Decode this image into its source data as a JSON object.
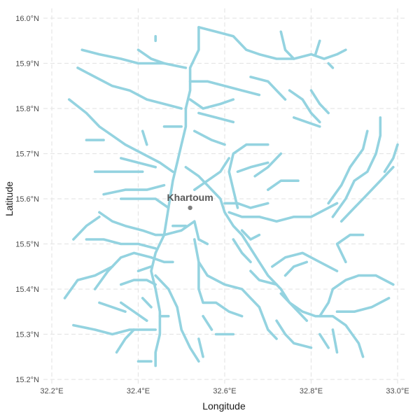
{
  "map": {
    "xlabel": "Longitude",
    "ylabel": "Latitude",
    "xlim": [
      32.2,
      33.0
    ],
    "ylim": [
      15.2,
      16.0
    ],
    "x_ticks": [
      {
        "value": 32.2,
        "label": "32.2°E"
      },
      {
        "value": 32.4,
        "label": "32.4°E"
      },
      {
        "value": 32.6,
        "label": "32.6°E"
      },
      {
        "value": 32.8,
        "label": "32.8°E"
      },
      {
        "value": 33.0,
        "label": "33.0°E"
      }
    ],
    "y_ticks": [
      {
        "value": 15.2,
        "label": "15.2°N"
      },
      {
        "value": 15.3,
        "label": "15.3°N"
      },
      {
        "value": 15.4,
        "label": "15.4°N"
      },
      {
        "value": 15.5,
        "label": "15.5°N"
      },
      {
        "value": 15.6,
        "label": "15.6°N"
      },
      {
        "value": 15.7,
        "label": "15.7°N"
      },
      {
        "value": 15.8,
        "label": "15.8°N"
      },
      {
        "value": 15.9,
        "label": "15.9°N"
      },
      {
        "value": 16.0,
        "label": "16.0°N"
      }
    ],
    "grid": true,
    "river_color": "#94d3e0",
    "point_color": "#7f7f7f",
    "city": {
      "name": "Khartoum",
      "lon": 32.52,
      "lat": 15.58
    },
    "rivers": [
      [
        [
          32.54,
          15.98
        ],
        [
          32.54,
          15.93
        ],
        [
          32.52,
          15.89
        ],
        [
          32.52,
          15.84
        ],
        [
          32.51,
          15.8
        ],
        [
          32.51,
          15.76
        ],
        [
          32.5,
          15.72
        ],
        [
          32.49,
          15.68
        ],
        [
          32.48,
          15.64
        ],
        [
          32.47,
          15.58
        ],
        [
          32.46,
          15.52
        ],
        [
          32.44,
          15.48
        ],
        [
          32.43,
          15.44
        ],
        [
          32.44,
          15.4
        ],
        [
          32.45,
          15.35
        ],
        [
          32.45,
          15.3
        ],
        [
          32.44,
          15.26
        ],
        [
          32.44,
          15.23
        ]
      ],
      [
        [
          32.54,
          15.98
        ],
        [
          32.58,
          15.97
        ],
        [
          32.62,
          15.96
        ],
        [
          32.65,
          15.93
        ],
        [
          32.68,
          15.92
        ],
        [
          32.72,
          15.91
        ],
        [
          32.76,
          15.91
        ],
        [
          32.8,
          15.92
        ],
        [
          32.83,
          15.91
        ],
        [
          32.86,
          15.92
        ],
        [
          32.88,
          15.93
        ]
      ],
      [
        [
          32.73,
          15.97
        ],
        [
          32.74,
          15.93
        ],
        [
          32.76,
          15.91
        ]
      ],
      [
        [
          32.82,
          15.95
        ],
        [
          32.81,
          15.92
        ]
      ],
      [
        [
          32.84,
          15.9
        ],
        [
          32.85,
          15.89
        ]
      ],
      [
        [
          32.51,
          15.89
        ],
        [
          32.46,
          15.9
        ],
        [
          32.4,
          15.9
        ],
        [
          32.36,
          15.91
        ],
        [
          32.31,
          15.92
        ],
        [
          32.27,
          15.93
        ]
      ],
      [
        [
          32.46,
          15.9
        ],
        [
          32.43,
          15.91
        ],
        [
          32.4,
          15.93
        ]
      ],
      [
        [
          32.26,
          15.89
        ],
        [
          32.3,
          15.87
        ],
        [
          32.34,
          15.85
        ],
        [
          32.38,
          15.84
        ],
        [
          32.42,
          15.82
        ],
        [
          32.46,
          15.81
        ],
        [
          32.5,
          15.8
        ]
      ],
      [
        [
          32.24,
          15.82
        ],
        [
          32.28,
          15.79
        ],
        [
          32.31,
          15.76
        ],
        [
          32.34,
          15.74
        ],
        [
          32.37,
          15.72
        ],
        [
          32.41,
          15.7
        ],
        [
          32.45,
          15.68
        ],
        [
          32.48,
          15.66
        ]
      ],
      [
        [
          32.28,
          15.73
        ],
        [
          32.32,
          15.73
        ]
      ],
      [
        [
          32.41,
          15.75
        ],
        [
          32.42,
          15.72
        ]
      ],
      [
        [
          32.36,
          15.69
        ],
        [
          32.4,
          15.68
        ],
        [
          32.44,
          15.67
        ]
      ],
      [
        [
          32.3,
          15.66
        ],
        [
          32.36,
          15.66
        ],
        [
          32.41,
          15.66
        ]
      ],
      [
        [
          32.32,
          15.61
        ],
        [
          32.37,
          15.62
        ],
        [
          32.42,
          15.62
        ],
        [
          32.46,
          15.63
        ]
      ],
      [
        [
          32.36,
          15.6
        ],
        [
          32.4,
          15.6
        ],
        [
          32.44,
          15.6
        ],
        [
          32.47,
          15.58
        ]
      ],
      [
        [
          32.31,
          15.57
        ],
        [
          32.34,
          15.55
        ],
        [
          32.37,
          15.54
        ],
        [
          32.41,
          15.53
        ],
        [
          32.44,
          15.52
        ],
        [
          32.46,
          15.52
        ]
      ],
      [
        [
          32.25,
          15.51
        ],
        [
          32.28,
          15.54
        ],
        [
          32.31,
          15.56
        ]
      ],
      [
        [
          32.28,
          15.51
        ],
        [
          32.32,
          15.51
        ],
        [
          32.36,
          15.5
        ],
        [
          32.4,
          15.5
        ],
        [
          32.44,
          15.49
        ]
      ],
      [
        [
          32.3,
          15.4
        ],
        [
          32.33,
          15.44
        ],
        [
          32.36,
          15.47
        ],
        [
          32.39,
          15.48
        ],
        [
          32.43,
          15.47
        ]
      ],
      [
        [
          32.23,
          15.38
        ],
        [
          32.26,
          15.42
        ],
        [
          32.3,
          15.43
        ],
        [
          32.34,
          15.45
        ]
      ],
      [
        [
          32.36,
          15.41
        ],
        [
          32.39,
          15.42
        ],
        [
          32.42,
          15.42
        ],
        [
          32.44,
          15.41
        ]
      ],
      [
        [
          32.4,
          15.44
        ],
        [
          32.43,
          15.45
        ]
      ],
      [
        [
          32.25,
          15.32
        ],
        [
          32.3,
          15.31
        ],
        [
          32.34,
          15.3
        ],
        [
          32.38,
          15.31
        ],
        [
          32.42,
          15.31
        ],
        [
          32.44,
          15.31
        ]
      ],
      [
        [
          32.31,
          15.37
        ],
        [
          32.34,
          15.36
        ],
        [
          32.37,
          15.35
        ]
      ],
      [
        [
          32.36,
          15.37
        ],
        [
          32.39,
          15.35
        ],
        [
          32.42,
          15.33
        ]
      ],
      [
        [
          32.35,
          15.26
        ],
        [
          32.37,
          15.29
        ],
        [
          32.39,
          15.31
        ]
      ],
      [
        [
          32.4,
          15.24
        ],
        [
          32.43,
          15.24
        ]
      ],
      [
        [
          32.43,
          15.36
        ],
        [
          32.41,
          15.38
        ]
      ],
      [
        [
          32.44,
          15.43
        ],
        [
          32.47,
          15.4
        ],
        [
          32.49,
          15.36
        ],
        [
          32.5,
          15.31
        ],
        [
          32.52,
          15.27
        ],
        [
          32.54,
          15.24
        ]
      ],
      [
        [
          32.45,
          15.34
        ],
        [
          32.47,
          15.34
        ]
      ],
      [
        [
          32.43,
          15.47
        ],
        [
          32.46,
          15.46
        ],
        [
          32.48,
          15.46
        ]
      ],
      [
        [
          32.46,
          15.52
        ],
        [
          32.5,
          15.53
        ],
        [
          32.53,
          15.55
        ],
        [
          32.54,
          15.51
        ],
        [
          32.56,
          15.5
        ]
      ],
      [
        [
          32.48,
          15.54
        ],
        [
          32.51,
          15.54
        ]
      ],
      [
        [
          32.53,
          15.51
        ],
        [
          32.54,
          15.46
        ],
        [
          32.56,
          15.43
        ],
        [
          32.6,
          15.41
        ],
        [
          32.64,
          15.4
        ],
        [
          32.66,
          15.38
        ],
        [
          32.68,
          15.36
        ],
        [
          32.7,
          15.31
        ],
        [
          32.72,
          15.29
        ]
      ],
      [
        [
          32.54,
          15.46
        ],
        [
          32.54,
          15.4
        ],
        [
          32.55,
          15.37
        ],
        [
          32.58,
          15.37
        ],
        [
          32.61,
          15.35
        ],
        [
          32.64,
          15.34
        ]
      ],
      [
        [
          32.55,
          15.34
        ],
        [
          32.57,
          15.31
        ]
      ],
      [
        [
          32.58,
          15.3
        ],
        [
          32.62,
          15.3
        ]
      ],
      [
        [
          32.54,
          15.29
        ],
        [
          32.55,
          15.25
        ]
      ],
      [
        [
          32.51,
          15.67
        ],
        [
          32.54,
          15.65
        ],
        [
          32.57,
          15.62
        ],
        [
          32.59,
          15.6
        ],
        [
          32.6,
          15.57
        ],
        [
          32.62,
          15.54
        ],
        [
          32.64,
          15.52
        ],
        [
          32.66,
          15.49
        ],
        [
          32.68,
          15.46
        ],
        [
          32.7,
          15.43
        ],
        [
          32.73,
          15.4
        ],
        [
          32.75,
          15.37
        ],
        [
          32.78,
          15.35
        ],
        [
          32.81,
          15.34
        ],
        [
          32.85,
          15.34
        ],
        [
          32.88,
          15.32
        ],
        [
          32.91,
          15.28
        ],
        [
          32.92,
          15.25
        ]
      ],
      [
        [
          32.6,
          15.59
        ],
        [
          32.63,
          15.59
        ],
        [
          32.66,
          15.58
        ],
        [
          32.7,
          15.59
        ]
      ],
      [
        [
          32.61,
          15.57
        ],
        [
          32.64,
          15.56
        ],
        [
          32.68,
          15.56
        ],
        [
          32.72,
          15.55
        ],
        [
          32.76,
          15.56
        ],
        [
          32.8,
          15.56
        ],
        [
          32.84,
          15.58
        ],
        [
          32.86,
          15.59
        ]
      ],
      [
        [
          32.64,
          15.53
        ],
        [
          32.66,
          15.51
        ],
        [
          32.68,
          15.52
        ]
      ],
      [
        [
          32.62,
          15.51
        ],
        [
          32.64,
          15.48
        ],
        [
          32.66,
          15.46
        ]
      ],
      [
        [
          32.66,
          15.44
        ],
        [
          32.68,
          15.42
        ],
        [
          32.72,
          15.41
        ]
      ],
      [
        [
          32.71,
          15.45
        ],
        [
          32.74,
          15.47
        ],
        [
          32.78,
          15.48
        ],
        [
          32.82,
          15.46
        ],
        [
          32.86,
          15.44
        ]
      ],
      [
        [
          32.74,
          15.43
        ],
        [
          32.76,
          15.45
        ],
        [
          32.79,
          15.46
        ]
      ],
      [
        [
          32.73,
          15.39
        ],
        [
          32.76,
          15.36
        ],
        [
          32.79,
          15.33
        ]
      ],
      [
        [
          32.72,
          15.33
        ],
        [
          32.74,
          15.3
        ],
        [
          32.76,
          15.28
        ],
        [
          32.8,
          15.27
        ]
      ],
      [
        [
          32.82,
          15.34
        ],
        [
          32.84,
          15.37
        ],
        [
          32.85,
          15.4
        ],
        [
          32.88,
          15.42
        ],
        [
          32.91,
          15.43
        ],
        [
          32.95,
          15.43
        ],
        [
          32.99,
          15.41
        ]
      ],
      [
        [
          32.86,
          15.35
        ],
        [
          32.9,
          15.35
        ],
        [
          32.94,
          15.36
        ],
        [
          32.98,
          15.38
        ]
      ],
      [
        [
          32.85,
          15.31
        ],
        [
          32.86,
          15.26
        ]
      ],
      [
        [
          32.82,
          15.3
        ],
        [
          32.84,
          15.27
        ]
      ],
      [
        [
          32.88,
          15.46
        ],
        [
          32.86,
          15.5
        ],
        [
          32.89,
          15.52
        ],
        [
          32.92,
          15.52
        ]
      ],
      [
        [
          32.87,
          15.55
        ],
        [
          32.9,
          15.58
        ],
        [
          32.93,
          15.61
        ],
        [
          32.96,
          15.64
        ],
        [
          32.99,
          15.67
        ]
      ],
      [
        [
          32.85,
          15.56
        ],
        [
          32.88,
          15.6
        ],
        [
          32.9,
          15.64
        ],
        [
          32.93,
          15.66
        ],
        [
          32.95,
          15.7
        ],
        [
          32.96,
          15.74
        ],
        [
          32.96,
          15.78
        ]
      ],
      [
        [
          32.84,
          15.59
        ],
        [
          32.87,
          15.63
        ],
        [
          32.89,
          15.67
        ],
        [
          32.92,
          15.71
        ],
        [
          32.93,
          15.75
        ]
      ],
      [
        [
          32.97,
          15.66
        ],
        [
          32.99,
          15.69
        ],
        [
          33.0,
          15.72
        ]
      ],
      [
        [
          32.63,
          15.58
        ],
        [
          32.62,
          15.62
        ],
        [
          32.61,
          15.66
        ],
        [
          32.62,
          15.7
        ],
        [
          32.65,
          15.72
        ],
        [
          32.68,
          15.72
        ],
        [
          32.7,
          15.72
        ]
      ],
      [
        [
          32.63,
          15.66
        ],
        [
          32.66,
          15.67
        ],
        [
          32.7,
          15.68
        ]
      ],
      [
        [
          32.67,
          15.65
        ],
        [
          32.7,
          15.67
        ],
        [
          32.73,
          15.7
        ]
      ],
      [
        [
          32.7,
          15.62
        ],
        [
          32.73,
          15.64
        ],
        [
          32.77,
          15.64
        ]
      ],
      [
        [
          32.53,
          15.62
        ],
        [
          32.56,
          15.64
        ],
        [
          32.59,
          15.66
        ],
        [
          32.61,
          15.69
        ]
      ],
      [
        [
          32.54,
          15.79
        ],
        [
          32.58,
          15.78
        ],
        [
          32.62,
          15.77
        ]
      ],
      [
        [
          32.53,
          15.75
        ],
        [
          32.57,
          15.73
        ],
        [
          32.6,
          15.72
        ]
      ],
      [
        [
          32.46,
          15.76
        ],
        [
          32.5,
          15.76
        ]
      ],
      [
        [
          32.52,
          15.86
        ],
        [
          32.56,
          15.86
        ],
        [
          32.6,
          15.85
        ],
        [
          32.64,
          15.84
        ],
        [
          32.68,
          15.83
        ]
      ],
      [
        [
          32.52,
          15.82
        ],
        [
          32.55,
          15.8
        ],
        [
          32.59,
          15.81
        ],
        [
          32.62,
          15.82
        ]
      ],
      [
        [
          32.66,
          15.87
        ],
        [
          32.7,
          15.86
        ],
        [
          32.72,
          15.84
        ],
        [
          32.74,
          15.82
        ]
      ],
      [
        [
          32.75,
          15.84
        ],
        [
          32.78,
          15.82
        ],
        [
          32.8,
          15.79
        ],
        [
          32.82,
          15.77
        ]
      ],
      [
        [
          32.8,
          15.84
        ],
        [
          32.82,
          15.81
        ],
        [
          32.84,
          15.79
        ]
      ],
      [
        [
          32.76,
          15.78
        ],
        [
          32.79,
          15.77
        ],
        [
          32.82,
          15.76
        ]
      ],
      [
        [
          32.44,
          15.96
        ],
        [
          32.44,
          15.95
        ]
      ]
    ]
  }
}
